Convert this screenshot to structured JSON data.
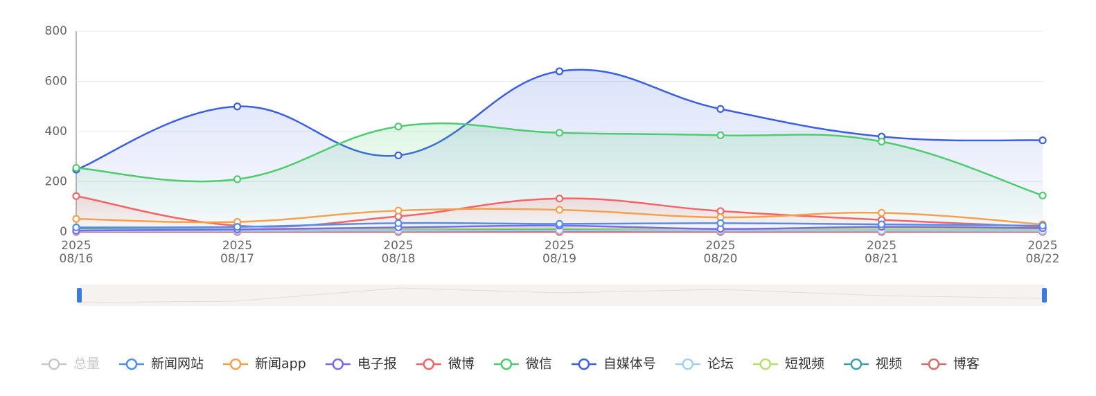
{
  "chart_data": {
    "type": "line",
    "categories": [
      "2025\n08/16",
      "2025\n08/17",
      "2025\n08/18",
      "2025\n08/19",
      "2025\n08/20",
      "2025\n08/21",
      "2025\n08/22"
    ],
    "ylim": [
      0,
      800
    ],
    "yticks": [
      0,
      200,
      400,
      600,
      800
    ],
    "grid": true,
    "hidden_series": [
      {
        "name": "总量",
        "color": "#c8c8c8"
      }
    ],
    "series": [
      {
        "name": "新闻网站",
        "color": "#4d8ff0",
        "values": [
          18,
          20,
          35,
          32,
          35,
          30,
          25
        ]
      },
      {
        "name": "新闻app",
        "color": "#f7a04b",
        "values": [
          52,
          40,
          85,
          88,
          58,
          76,
          30
        ]
      },
      {
        "name": "电子报",
        "color": "#7b68ee",
        "values": [
          5,
          10,
          18,
          25,
          12,
          20,
          15
        ]
      },
      {
        "name": "微博",
        "color": "#f56464",
        "area": true,
        "values": [
          143,
          25,
          62,
          133,
          83,
          48,
          20
        ]
      },
      {
        "name": "微信",
        "color": "#4ccc6e",
        "area": true,
        "values": [
          255,
          210,
          420,
          395,
          385,
          360,
          145
        ]
      },
      {
        "name": "自媒体号",
        "color": "#3a5fe0",
        "area": true,
        "values": [
          248,
          500,
          305,
          640,
          490,
          380,
          365
        ]
      },
      {
        "name": "论坛",
        "color": "#9fd1f7",
        "values": [
          3,
          4,
          5,
          6,
          5,
          5,
          4
        ]
      },
      {
        "name": "短视频",
        "color": "#b4e06b",
        "values": [
          8,
          10,
          12,
          15,
          10,
          12,
          10
        ]
      },
      {
        "name": "视频",
        "color": "#3aa0a8",
        "values": [
          12,
          10,
          8,
          10,
          8,
          10,
          8
        ]
      },
      {
        "name": "博客",
        "color": "#d46b6b",
        "values": [
          0,
          0,
          0,
          0,
          0,
          0,
          0
        ]
      }
    ]
  }
}
